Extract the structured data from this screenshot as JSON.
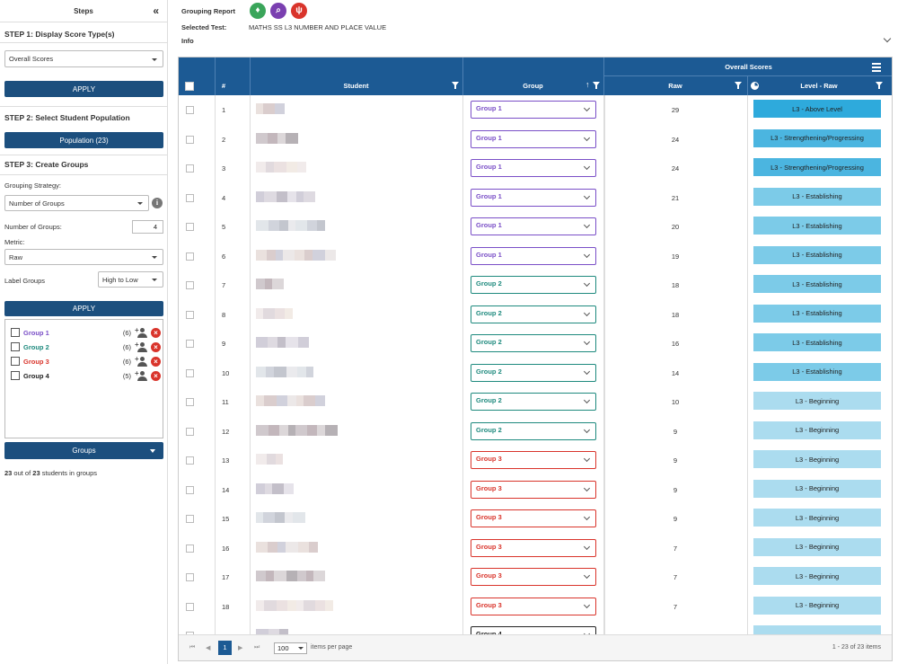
{
  "sidebar": {
    "title": "Steps",
    "collapse_glyph": "«",
    "step1_title": "STEP 1: Display Score Type(s)",
    "score_type_value": "Overall Scores",
    "apply_label": "APPLY",
    "step2_title": "STEP 2: Select Student Population",
    "population_label": "Population (23)",
    "step3_title": "STEP 3: Create Groups",
    "grouping_strategy_label": "Grouping Strategy:",
    "grouping_strategy_value": "Number of Groups",
    "num_groups_label": "Number of Groups:",
    "num_groups_value": "4",
    "metric_label": "Metric:",
    "metric_value": "Raw",
    "label_groups_label": "Label Groups",
    "label_groups_value": "High to Low",
    "apply2_label": "APPLY",
    "groups": [
      {
        "name": "Group 1",
        "count": "(6)",
        "color": "#7a4fc7"
      },
      {
        "name": "Group 2",
        "count": "(6)",
        "color": "#1e8a7e"
      },
      {
        "name": "Group 3",
        "count": "(6)",
        "color": "#d9342b"
      },
      {
        "name": "Group 4",
        "count": "(5)",
        "color": "#222222"
      }
    ],
    "groups_button_label": "Groups",
    "summary_prefix": "23",
    "summary_mid": " out of ",
    "summary_total": "23",
    "summary_suffix": " students in groups"
  },
  "topbar": {
    "report_title": "Grouping Report",
    "selected_test_label": "Selected Test:",
    "selected_test_value": "MATHS SS L3 NUMBER AND PLACE VALUE",
    "info_label": "Info",
    "icons": [
      {
        "name": "tie-icon",
        "color": "#3aa55a",
        "glyph": "♦"
      },
      {
        "name": "search-icon",
        "color": "#7a3fb0",
        "glyph": "⌕"
      },
      {
        "name": "stethoscope-icon",
        "color": "#d9342b",
        "glyph": "ψ"
      }
    ]
  },
  "grid": {
    "overall_scores_header": "Overall Scores",
    "col_number": "#",
    "col_student": "Student",
    "col_group": "Group",
    "col_raw": "Raw",
    "col_level": "Level - Raw",
    "rows": [
      {
        "num": "1",
        "group": "Group 1",
        "raw": "29",
        "level": "L3 - Above Level"
      },
      {
        "num": "2",
        "group": "Group 1",
        "raw": "24",
        "level": "L3 - Strengthening/Progressing"
      },
      {
        "num": "3",
        "group": "Group 1",
        "raw": "24",
        "level": "L3 - Strengthening/Progressing"
      },
      {
        "num": "4",
        "group": "Group 1",
        "raw": "21",
        "level": "L3 - Establishing"
      },
      {
        "num": "5",
        "group": "Group 1",
        "raw": "20",
        "level": "L3 - Establishing"
      },
      {
        "num": "6",
        "group": "Group 1",
        "raw": "19",
        "level": "L3 - Establishing"
      },
      {
        "num": "7",
        "group": "Group 2",
        "raw": "18",
        "level": "L3 - Establishing"
      },
      {
        "num": "8",
        "group": "Group 2",
        "raw": "18",
        "level": "L3 - Establishing"
      },
      {
        "num": "9",
        "group": "Group 2",
        "raw": "16",
        "level": "L3 - Establishing"
      },
      {
        "num": "10",
        "group": "Group 2",
        "raw": "14",
        "level": "L3 - Establishing"
      },
      {
        "num": "11",
        "group": "Group 2",
        "raw": "10",
        "level": "L3 - Beginning"
      },
      {
        "num": "12",
        "group": "Group 2",
        "raw": "9",
        "level": "L3 - Beginning"
      },
      {
        "num": "13",
        "group": "Group 3",
        "raw": "9",
        "level": "L3 - Beginning"
      },
      {
        "num": "14",
        "group": "Group 3",
        "raw": "9",
        "level": "L3 - Beginning"
      },
      {
        "num": "15",
        "group": "Group 3",
        "raw": "9",
        "level": "L3 - Beginning"
      },
      {
        "num": "16",
        "group": "Group 3",
        "raw": "7",
        "level": "L3 - Beginning"
      },
      {
        "num": "17",
        "group": "Group 3",
        "raw": "7",
        "level": "L3 - Beginning"
      },
      {
        "num": "18",
        "group": "Group 3",
        "raw": "7",
        "level": "L3 - Beginning"
      },
      {
        "num": "",
        "group": "Group 4",
        "raw": "",
        "level": ""
      }
    ],
    "level_colors": {
      "L3 - Above Level": "#2eaadc",
      "L3 - Strengthening/Progressing": "#4bb5e0",
      "L3 - Establishing": "#7ccbe8",
      "L3 - Beginning": "#abdcef",
      "": "#abdcef"
    },
    "group_colors": {
      "Group 1": "#7a4fc7",
      "Group 2": "#1e8a7e",
      "Group 3": "#d9342b",
      "Group 4": "#222222"
    }
  },
  "pager": {
    "first": "⏮",
    "prev": "◀",
    "current_page": "1",
    "next": "▶",
    "last": "⏭",
    "page_size": "100",
    "items_per_page_label": "items per page",
    "range_label": "1 - 23 of 23 items"
  }
}
